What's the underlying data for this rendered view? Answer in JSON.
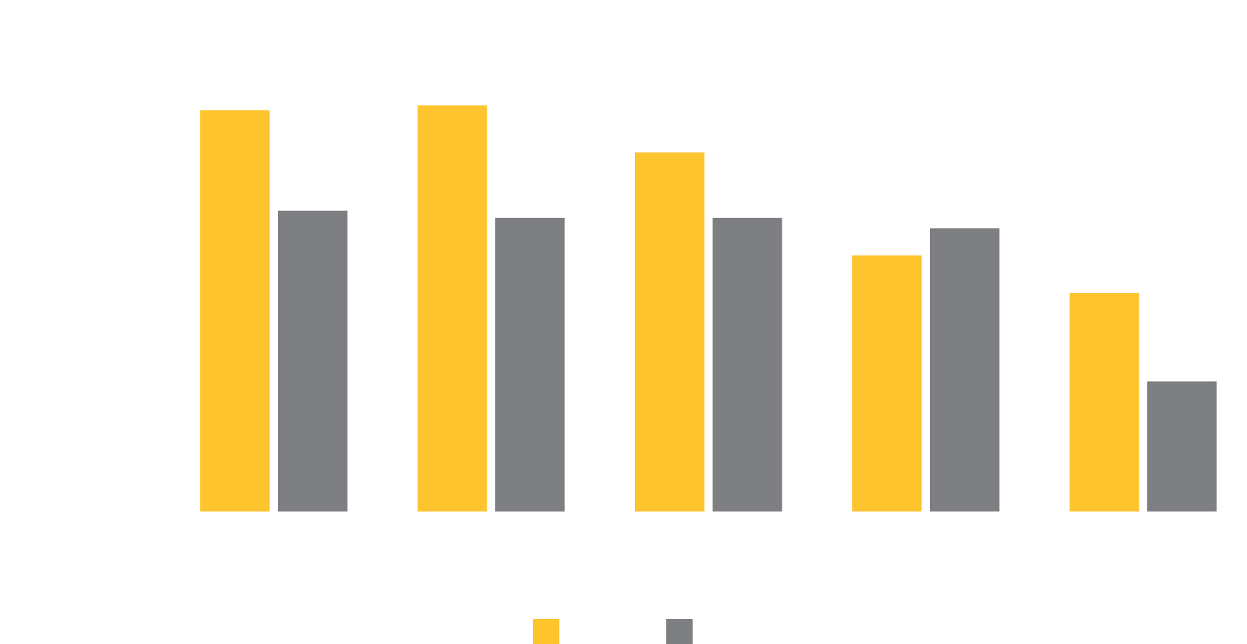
{
  "chart_data": {
    "type": "bar",
    "categories": [
      null,
      null,
      null,
      null,
      null
    ],
    "series": [
      {
        "color": "#fec42e",
        "values": [
          503,
          509,
          450,
          321,
          274
        ]
      },
      {
        "color": "#7e7f83",
        "values": [
          377,
          368,
          368,
          355,
          163
        ]
      }
    ],
    "ylim": [
      0,
      600
    ]
  }
}
